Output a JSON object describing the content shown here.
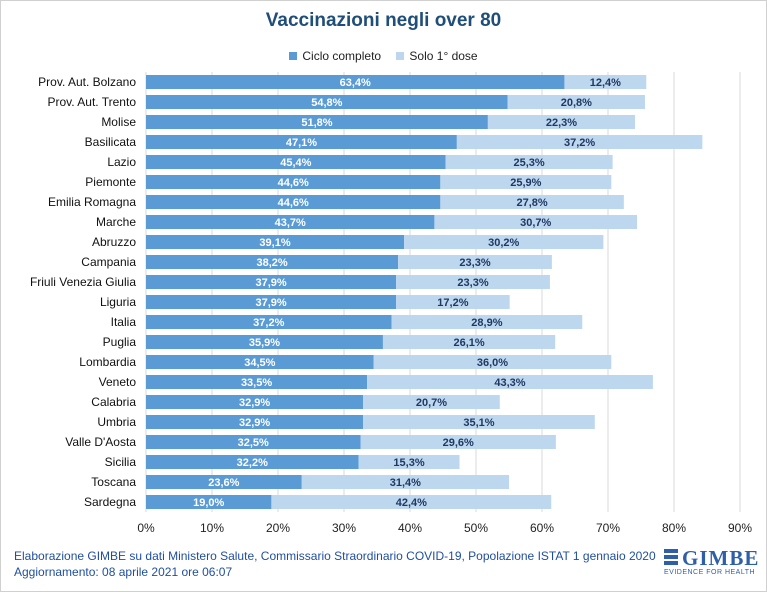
{
  "chart_data": {
    "type": "bar",
    "orientation": "horizontal",
    "stacked": true,
    "title": "Vaccinazioni negli over 80",
    "legend_position": "top",
    "grid": true,
    "xlim": [
      0,
      90
    ],
    "x_ticks": [
      "0%",
      "10%",
      "20%",
      "30%",
      "40%",
      "50%",
      "60%",
      "70%",
      "80%",
      "90%"
    ],
    "categories": [
      "Prov. Aut. Bolzano",
      "Prov. Aut. Trento",
      "Molise",
      "Basilicata",
      "Lazio",
      "Piemonte",
      "Emilia Romagna",
      "Marche",
      "Abruzzo",
      "Campania",
      "Friuli Venezia Giulia",
      "Liguria",
      "Italia",
      "Puglia",
      "Lombardia",
      "Veneto",
      "Calabria",
      "Umbria",
      "Valle D'Aosta",
      "Sicilia",
      "Toscana",
      "Sardegna"
    ],
    "series": [
      {
        "name": "Ciclo completo",
        "color": "#5b9bd5",
        "values": [
          63.4,
          54.8,
          51.8,
          47.1,
          45.4,
          44.6,
          44.6,
          43.7,
          39.1,
          38.2,
          37.9,
          37.9,
          37.2,
          35.9,
          34.5,
          33.5,
          32.9,
          32.9,
          32.5,
          32.2,
          23.6,
          19.0
        ],
        "labels": [
          "63,4%",
          "54,8%",
          "51,8%",
          "47,1%",
          "45,4%",
          "44,6%",
          "44,6%",
          "43,7%",
          "39,1%",
          "38,2%",
          "37,9%",
          "37,9%",
          "37,2%",
          "35,9%",
          "34,5%",
          "33,5%",
          "32,9%",
          "32,9%",
          "32,5%",
          "32,2%",
          "23,6%",
          "19,0%"
        ]
      },
      {
        "name": "Solo 1° dose",
        "color": "#bdd7ee",
        "values": [
          12.4,
          20.8,
          22.3,
          37.2,
          25.3,
          25.9,
          27.8,
          30.7,
          30.2,
          23.3,
          23.3,
          17.2,
          28.9,
          26.1,
          36.0,
          43.3,
          20.7,
          35.1,
          29.6,
          15.3,
          31.4,
          42.4
        ],
        "labels": [
          "12,4%",
          "20,8%",
          "22,3%",
          "37,2%",
          "25,3%",
          "25,9%",
          "27,8%",
          "30,7%",
          "30,2%",
          "23,3%",
          "23,3%",
          "17,2%",
          "28,9%",
          "26,1%",
          "36,0%",
          "43,3%",
          "20,7%",
          "35,1%",
          "29,6%",
          "15,3%",
          "31,4%",
          "42,4%"
        ]
      }
    ]
  },
  "footer": {
    "source": "Elaborazione GIMBE su dati Ministero Salute, Commissario  Straordinario COVID-19, Popolazione  ISTAT 1 gennaio 2020",
    "updated": "Aggiornamento: 08 aprile 2021 ore 06:07"
  },
  "logo": {
    "name": "GIMBE",
    "tagline": "EVIDENCE FOR HEALTH"
  }
}
